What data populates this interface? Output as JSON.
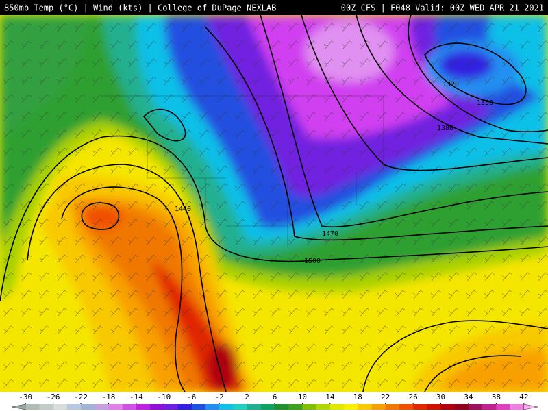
{
  "header": {
    "left": "850mb Temp (°C) | Wind (kts) | College of DuPage NEXLAB",
    "right": "00Z CFS | F048 Valid: 00Z WED APR 21 2021"
  },
  "contour_labels": [
    "1320",
    "1350",
    "1380",
    "1440",
    "1470",
    "1500"
  ],
  "colorbar": {
    "lim": [
      -32,
      44
    ],
    "ticks": [
      -30,
      -26,
      -22,
      -18,
      -14,
      -10,
      -6,
      -2,
      2,
      6,
      10,
      14,
      18,
      22,
      26,
      30,
      34,
      38,
      42
    ],
    "colors": [
      "#9aa8a0",
      "#b0bcb4",
      "#c4ccc8",
      "#d8dcdc",
      "#b8c8e0",
      "#a0b4d8",
      "#c8a0e0",
      "#e080e8",
      "#d050e8",
      "#c020e0",
      "#9010d8",
      "#7020e0",
      "#3020e0",
      "#2050e0",
      "#2090f0",
      "#10c0e8",
      "#20d0c0",
      "#20b090",
      "#10a060",
      "#209030",
      "#40a020",
      "#80c000",
      "#b0d800",
      "#e0e800",
      "#f8f000",
      "#f8c800",
      "#f8a000",
      "#f07800",
      "#f05000",
      "#e02800",
      "#d01000",
      "#b00010",
      "#900018",
      "#a01060",
      "#c02090",
      "#e040c0",
      "#f080e0",
      "#f8b0f0"
    ]
  }
}
